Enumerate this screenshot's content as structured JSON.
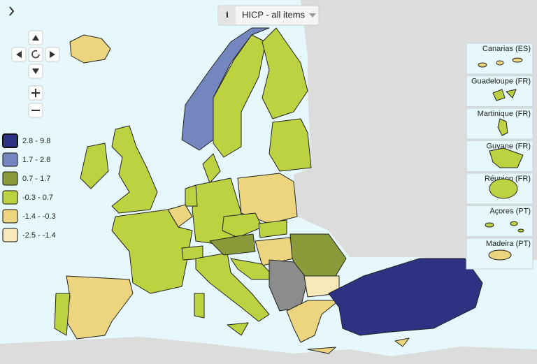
{
  "dropdown": {
    "info": "i",
    "label": "HICP - all items"
  },
  "legend": {
    "items": [
      {
        "label": "2.8 - 9.8",
        "color": "#2d3282"
      },
      {
        "label": "1.7 - 2.8",
        "color": "#7486c0"
      },
      {
        "label": "0.7 - 1.7",
        "color": "#8a9c3a"
      },
      {
        "label": "-0.3 - 0.7",
        "color": "#bdd240"
      },
      {
        "label": "-1.4 - -0.3",
        "color": "#ecd57e"
      },
      {
        "label": "-2.5 - -1.4",
        "color": "#f8e9ba"
      }
    ]
  },
  "insets": [
    "Canarias (ES)",
    "Guadeloupe (FR)",
    "Martinique (FR)",
    "Guyane (FR)",
    "Réunion (FR)",
    "Açores (PT)",
    "Madeira (PT)"
  ]
}
